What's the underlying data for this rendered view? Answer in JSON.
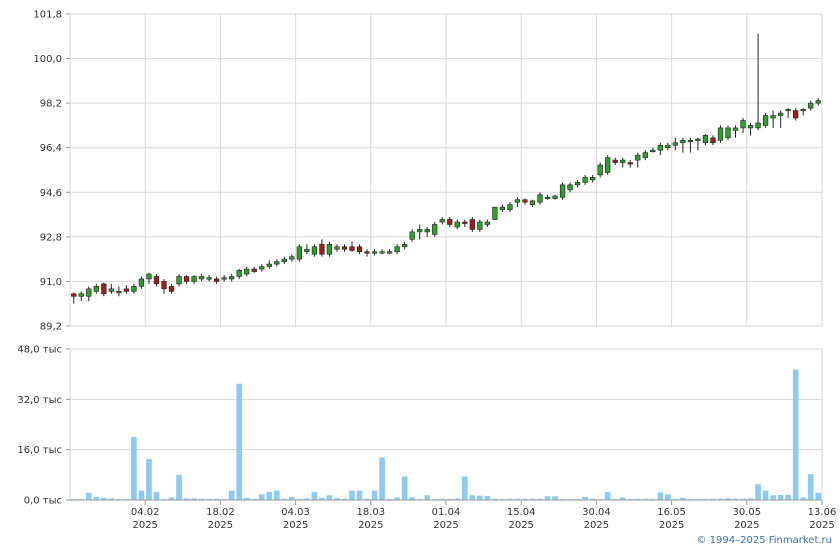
{
  "colors": {
    "up": "#2e9e2e",
    "down": "#a01e1e",
    "wick": "#222222",
    "volume": "#8ec9f0",
    "grid": "#d9d9d9",
    "axis": "#9a9a9a"
  },
  "copyright": "© 1994–2025 Finmarket.ru",
  "chart_data": [
    {
      "type": "candlestick",
      "title": "",
      "ylim": [
        89.2,
        101.8
      ],
      "y_ticks": [
        "101,8",
        "100,0",
        "98,2",
        "96,4",
        "94,6",
        "92,8",
        "91,0",
        "89,2"
      ],
      "x_ticks": [
        {
          "day": "04.02",
          "year": "2025"
        },
        {
          "day": "18.02",
          "year": "2025"
        },
        {
          "day": "04.03",
          "year": "2025"
        },
        {
          "day": "18.03",
          "year": "2025"
        },
        {
          "day": "01.04",
          "year": "2025"
        },
        {
          "day": "15.04",
          "year": "2025"
        },
        {
          "day": "30.04",
          "year": "2025"
        },
        {
          "day": "16.05",
          "year": "2025"
        },
        {
          "day": "30.05",
          "year": "2025"
        },
        {
          "day": "13.06",
          "year": "2025"
        }
      ],
      "x_tick_index": [
        10,
        20,
        30,
        40,
        50,
        60,
        70,
        80,
        90,
        100
      ],
      "grid": true,
      "series": [
        {
          "ohlc": [
            [
              90.5,
              90.55,
              90.1,
              90.4
            ],
            [
              90.4,
              90.6,
              90.2,
              90.5
            ],
            [
              90.4,
              90.8,
              90.2,
              90.7
            ],
            [
              90.6,
              90.9,
              90.5,
              90.8
            ],
            [
              90.9,
              90.95,
              90.4,
              90.5
            ],
            [
              90.6,
              90.9,
              90.5,
              90.7
            ],
            [
              90.6,
              90.8,
              90.4,
              90.6
            ],
            [
              90.7,
              90.85,
              90.5,
              90.6
            ],
            [
              90.6,
              90.9,
              90.5,
              90.8
            ],
            [
              90.8,
              91.2,
              90.7,
              91.1
            ],
            [
              91.1,
              91.35,
              90.9,
              91.3
            ],
            [
              91.2,
              91.3,
              90.8,
              90.9
            ],
            [
              91.0,
              91.1,
              90.5,
              90.7
            ],
            [
              90.8,
              90.9,
              90.5,
              90.6
            ],
            [
              90.9,
              91.3,
              90.8,
              91.2
            ],
            [
              91.2,
              91.25,
              90.9,
              91.0
            ],
            [
              91.0,
              91.25,
              90.9,
              91.2
            ],
            [
              91.1,
              91.3,
              91.0,
              91.2
            ],
            [
              91.1,
              91.25,
              91.0,
              91.15
            ],
            [
              91.1,
              91.2,
              90.9,
              91.0
            ],
            [
              91.1,
              91.25,
              91.0,
              91.15
            ],
            [
              91.1,
              91.3,
              91.0,
              91.2
            ],
            [
              91.2,
              91.5,
              91.1,
              91.45
            ],
            [
              91.3,
              91.6,
              91.2,
              91.5
            ],
            [
              91.5,
              91.6,
              91.35,
              91.4
            ],
            [
              91.5,
              91.7,
              91.4,
              91.6
            ],
            [
              91.6,
              91.85,
              91.5,
              91.7
            ],
            [
              91.7,
              91.9,
              91.6,
              91.8
            ],
            [
              91.8,
              92.0,
              91.7,
              91.9
            ],
            [
              91.9,
              92.1,
              91.8,
              92.0
            ],
            [
              91.9,
              92.5,
              91.8,
              92.4
            ],
            [
              92.2,
              92.5,
              92.1,
              92.3
            ],
            [
              92.1,
              92.5,
              92.0,
              92.4
            ],
            [
              92.5,
              92.7,
              92.0,
              92.1
            ],
            [
              92.1,
              92.6,
              92.0,
              92.5
            ],
            [
              92.3,
              92.5,
              92.2,
              92.4
            ],
            [
              92.4,
              92.5,
              92.2,
              92.3
            ],
            [
              92.4,
              92.6,
              92.2,
              92.25
            ],
            [
              92.4,
              92.5,
              92.1,
              92.2
            ],
            [
              92.2,
              92.3,
              92.0,
              92.15
            ],
            [
              92.2,
              92.3,
              92.05,
              92.2
            ],
            [
              92.2,
              92.3,
              92.1,
              92.2
            ],
            [
              92.2,
              92.3,
              92.1,
              92.2
            ],
            [
              92.2,
              92.5,
              92.1,
              92.4
            ],
            [
              92.4,
              92.6,
              92.3,
              92.5
            ],
            [
              92.7,
              93.1,
              92.6,
              93.0
            ],
            [
              93.0,
              93.3,
              92.7,
              93.1
            ],
            [
              93.0,
              93.2,
              92.8,
              93.1
            ],
            [
              92.9,
              93.4,
              92.8,
              93.3
            ],
            [
              93.4,
              93.6,
              93.3,
              93.5
            ],
            [
              93.5,
              93.6,
              93.2,
              93.3
            ],
            [
              93.2,
              93.5,
              93.1,
              93.4
            ],
            [
              93.4,
              93.5,
              93.2,
              93.35
            ],
            [
              93.5,
              93.6,
              93.0,
              93.1
            ],
            [
              93.1,
              93.5,
              93.0,
              93.4
            ],
            [
              93.3,
              93.5,
              93.2,
              93.4
            ],
            [
              93.5,
              94.0,
              93.5,
              94.0
            ],
            [
              93.9,
              94.1,
              93.8,
              94.0
            ],
            [
              93.9,
              94.2,
              93.8,
              94.1
            ],
            [
              94.2,
              94.4,
              94.0,
              94.3
            ],
            [
              94.3,
              94.35,
              94.1,
              94.2
            ],
            [
              94.1,
              94.3,
              94.0,
              94.25
            ],
            [
              94.2,
              94.6,
              94.1,
              94.5
            ],
            [
              94.4,
              94.5,
              94.3,
              94.4
            ],
            [
              94.35,
              94.5,
              94.3,
              94.45
            ],
            [
              94.4,
              95.0,
              94.3,
              94.9
            ],
            [
              94.7,
              95.0,
              94.6,
              94.9
            ],
            [
              94.9,
              95.1,
              94.8,
              95.0
            ],
            [
              95.0,
              95.3,
              94.9,
              95.2
            ],
            [
              95.1,
              95.3,
              95.0,
              95.2
            ],
            [
              95.3,
              95.8,
              95.2,
              95.7
            ],
            [
              95.4,
              96.1,
              95.3,
              96.0
            ],
            [
              95.9,
              96.0,
              95.7,
              95.8
            ],
            [
              95.8,
              96.0,
              95.6,
              95.9
            ],
            [
              95.8,
              95.9,
              95.6,
              95.75
            ],
            [
              95.9,
              96.2,
              95.6,
              96.1
            ],
            [
              96.0,
              96.3,
              95.9,
              96.2
            ],
            [
              96.3,
              96.4,
              96.2,
              96.3
            ],
            [
              96.3,
              96.6,
              96.1,
              96.5
            ],
            [
              96.4,
              96.6,
              96.3,
              96.5
            ],
            [
              96.5,
              96.8,
              96.3,
              96.6
            ],
            [
              96.6,
              96.8,
              96.2,
              96.7
            ],
            [
              96.7,
              96.8,
              96.2,
              96.7
            ],
            [
              96.7,
              96.8,
              96.3,
              96.75
            ],
            [
              96.6,
              96.95,
              96.5,
              96.9
            ],
            [
              96.8,
              96.9,
              96.5,
              96.6
            ],
            [
              96.7,
              97.3,
              96.6,
              97.2
            ],
            [
              96.8,
              97.3,
              96.7,
              97.2
            ],
            [
              97.1,
              97.3,
              96.8,
              97.2
            ],
            [
              97.2,
              97.6,
              97.0,
              97.5
            ],
            [
              97.2,
              97.4,
              96.9,
              97.3
            ],
            [
              97.2,
              101.0,
              97.1,
              97.4
            ],
            [
              97.3,
              97.8,
              97.2,
              97.7
            ],
            [
              97.6,
              97.9,
              97.2,
              97.7
            ],
            [
              97.7,
              97.9,
              97.2,
              97.8
            ],
            [
              97.9,
              98.0,
              97.6,
              97.95
            ],
            [
              97.9,
              98.0,
              97.5,
              97.6
            ],
            [
              97.9,
              98.0,
              97.7,
              97.95
            ],
            [
              98.0,
              98.3,
              97.9,
              98.2
            ],
            [
              98.2,
              98.4,
              98.1,
              98.3
            ]
          ]
        }
      ]
    },
    {
      "type": "bar",
      "title": "",
      "ylim": [
        0,
        48
      ],
      "y_ticks": [
        "48,0 тыс",
        "32,0 тыс",
        "16,0 тыс",
        "0,0 тыс"
      ],
      "series": [
        {
          "values": [
            0.3,
            0.3,
            2.3,
            1.0,
            0.7,
            0.5,
            0.3,
            0.3,
            20.0,
            3.0,
            13.0,
            2.5,
            0.3,
            0.8,
            8.0,
            0.5,
            0.5,
            0.4,
            0.4,
            0.4,
            0.3,
            3.0,
            37.0,
            0.7,
            0.4,
            1.8,
            2.6,
            3.0,
            0.4,
            1.0,
            0.3,
            0.5,
            2.5,
            0.7,
            1.5,
            0.6,
            0.4,
            3.0,
            3.0,
            0.4,
            3.0,
            13.5,
            0.3,
            0.8,
            7.5,
            0.8,
            0.3,
            1.5,
            0.3,
            0.4,
            0.3,
            0.5,
            7.5,
            1.5,
            1.4,
            1.3,
            0.4,
            0.3,
            0.4,
            0.4,
            0.4,
            0.4,
            0.4,
            1.2,
            1.2,
            0.3,
            0.3,
            0.3,
            1.0,
            0.4,
            0.3,
            2.5,
            0.3,
            0.8,
            0.3,
            0.4,
            0.4,
            0.3,
            2.4,
            1.8,
            0.3,
            0.7,
            0.3,
            0.3,
            0.3,
            0.4,
            0.4,
            0.5,
            0.4,
            0.4,
            0.5,
            5.0,
            3.0,
            1.5,
            1.6,
            1.6,
            41.5,
            0.8,
            8.2,
            2.3
          ]
        }
      ]
    }
  ]
}
